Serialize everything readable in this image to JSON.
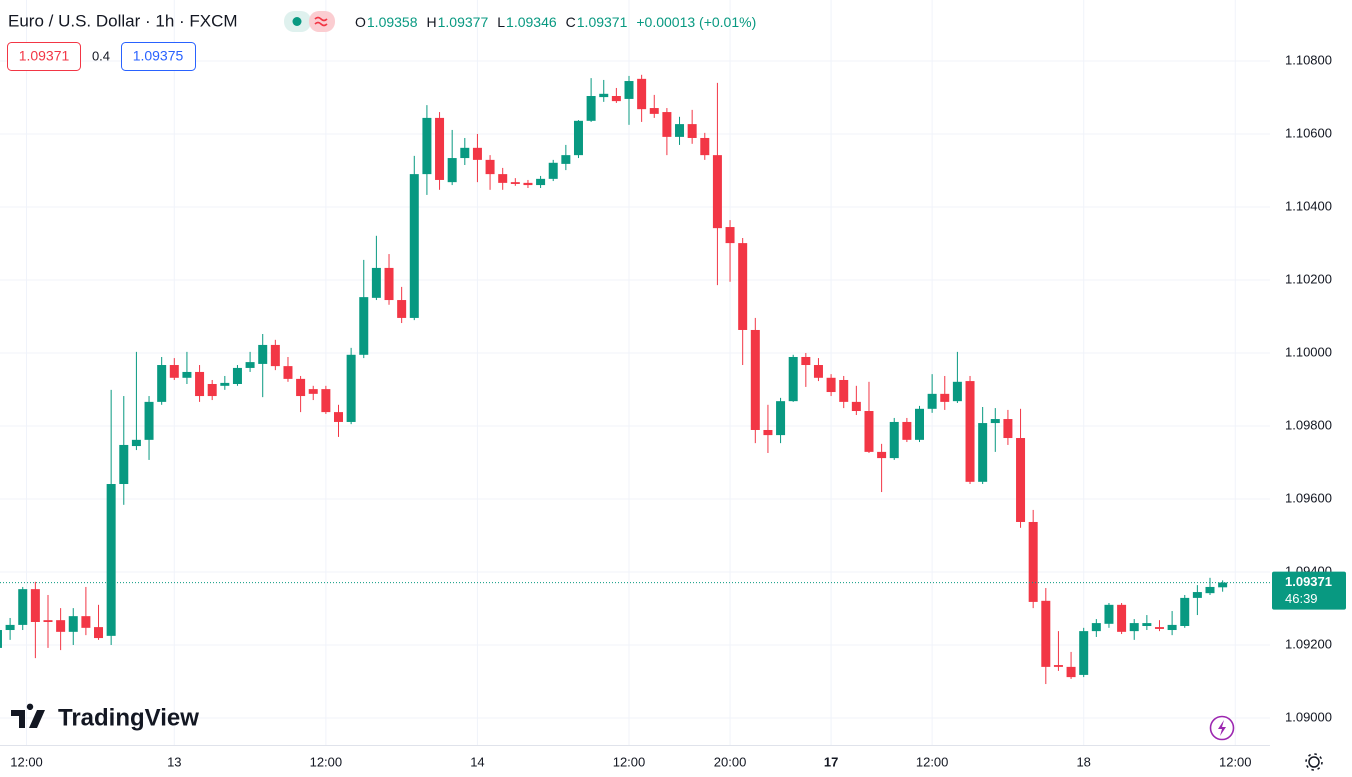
{
  "chart_data": {
    "type": "candlestick",
    "title": "Euro / U.S. Dollar · 1h · FXCM",
    "ohlc_labels": [
      "O",
      "H",
      "L",
      "C"
    ],
    "ohlc_values": [
      1.09358,
      1.09377,
      1.09346,
      1.09371
    ],
    "change": "+0.00013 (+0.01%)",
    "bid": 1.09371,
    "spread": 0.4,
    "ask": 1.09375,
    "last_price": 1.09371,
    "countdown": "46:39",
    "watermark": "TradingView",
    "up_color": "#089981",
    "down_color": "#f23645",
    "grid": true,
    "xlim": [
      0.2,
      100.75
    ],
    "xticks": [
      {
        "value": 2.3,
        "label": "12:00"
      },
      {
        "value": 14,
        "label": "13"
      },
      {
        "value": 26,
        "label": "12:00"
      },
      {
        "value": 38,
        "label": "14"
      },
      {
        "value": 50,
        "label": "12:00"
      },
      {
        "value": 58,
        "label": "20:00"
      },
      {
        "value": 66,
        "label": "17"
      },
      {
        "value": 74,
        "label": "12:00"
      },
      {
        "value": 86,
        "label": "18"
      },
      {
        "value": 98,
        "label": "12:00"
      }
    ],
    "ylim": [
      1.08926,
      1.10967
    ],
    "yticks": [
      {
        "value": 1.09,
        "label": "1.09000"
      },
      {
        "value": 1.092,
        "label": "1.09200"
      },
      {
        "value": 1.094,
        "label": "1.09400"
      },
      {
        "value": 1.096,
        "label": "1.09600"
      },
      {
        "value": 1.098,
        "label": "1.09800"
      },
      {
        "value": 1.1,
        "label": "1.10000"
      },
      {
        "value": 1.102,
        "label": "1.10200"
      },
      {
        "value": 1.104,
        "label": "1.10400"
      },
      {
        "value": 1.106,
        "label": "1.10600"
      },
      {
        "value": 1.108,
        "label": "1.10800"
      }
    ],
    "open": [
      1.09192,
      1.09241,
      1.09255,
      1.09353,
      1.09268,
      1.09268,
      1.09236,
      1.09279,
      1.09249,
      1.09225,
      1.09641,
      1.09745,
      1.09762,
      1.09866,
      1.09967,
      1.09932,
      1.09948,
      1.09915,
      1.0991,
      1.09915,
      1.09959,
      1.0997,
      1.10022,
      1.09964,
      1.09929,
      1.09901,
      1.09901,
      1.09838,
      1.09811,
      1.09995,
      1.10151,
      1.10233,
      1.10145,
      1.10096,
      1.1049,
      1.10644,
      1.10468,
      1.10534,
      1.10562,
      1.10529,
      1.1049,
      1.10468,
      1.10466,
      1.1046,
      1.10477,
      1.10518,
      1.10542,
      1.10636,
      1.10701,
      1.10704,
      1.10696,
      1.10751,
      1.10671,
      1.1066,
      1.10592,
      1.10627,
      1.10589,
      1.10542,
      1.10345,
      1.10301,
      1.10063,
      1.09789,
      1.09775,
      1.09868,
      1.09989,
      1.09967,
      1.09932,
      1.09926,
      1.09866,
      1.09841,
      1.09729,
      1.09712,
      1.09811,
      1.09762,
      1.09847,
      1.09888,
      1.09868,
      1.09923,
      1.09647,
      1.09808,
      1.09819,
      1.09767,
      1.09537,
      1.09321,
      1.09145,
      1.0914,
      1.09118,
      1.09238,
      1.09258,
      1.0931,
      1.09238,
      1.09252,
      1.09249,
      1.09241,
      1.09252,
      1.09329,
      1.09342,
      1.09358
    ],
    "high": [
      1.09255,
      1.09274,
      1.09359,
      1.09373,
      1.09337,
      1.09301,
      1.09301,
      1.09359,
      1.0931,
      1.09899,
      1.09882,
      1.10003,
      1.09882,
      1.09989,
      1.09986,
      1.10003,
      1.09967,
      1.09926,
      1.09937,
      1.09967,
      1.10003,
      1.10052,
      1.10036,
      1.09989,
      1.09937,
      1.0991,
      1.0991,
      1.09858,
      1.10014,
      1.10255,
      1.10321,
      1.10271,
      1.10181,
      1.1054,
      1.10679,
      1.1066,
      1.10611,
      1.10589,
      1.106,
      1.10542,
      1.10507,
      1.10479,
      1.10474,
      1.10485,
      1.10529,
      1.1057,
      1.10638,
      1.10753,
      1.10748,
      1.10726,
      1.10759,
      1.10762,
      1.10707,
      1.10671,
      1.10647,
      1.10666,
      1.10603,
      1.1074,
      1.10364,
      1.10315,
      1.10096,
      1.09858,
      1.09877,
      1.09995,
      1.1,
      1.09986,
      1.09942,
      1.09937,
      1.0991,
      1.09921,
      1.09751,
      1.09822,
      1.09822,
      1.09855,
      1.09942,
      1.09937,
      1.10003,
      1.09937,
      1.09852,
      1.09849,
      1.09844,
      1.09847,
      1.0957,
      1.09356,
      1.09238,
      1.09181,
      1.09247,
      1.09271,
      1.09315,
      1.09315,
      1.09271,
      1.09282,
      1.09268,
      1.09293,
      1.09337,
      1.09364,
      1.09384,
      1.09377
    ],
    "low": [
      1.09186,
      1.09214,
      1.09241,
      1.09164,
      1.09192,
      1.09186,
      1.092,
      1.09227,
      1.09214,
      1.092,
      1.09584,
      1.09734,
      1.09707,
      1.09858,
      1.09926,
      1.09915,
      1.09866,
      1.09871,
      1.09899,
      1.0991,
      1.09948,
      1.09879,
      1.09953,
      1.09921,
      1.09838,
      1.09871,
      1.09833,
      1.0977,
      1.09805,
      1.09986,
      1.10145,
      1.10132,
      1.10082,
      1.1009,
      1.10433,
      1.10447,
      1.1046,
      1.10515,
      1.10468,
      1.10447,
      1.10447,
      1.10458,
      1.10452,
      1.10452,
      1.10471,
      1.10501,
      1.10534,
      1.10633,
      1.10688,
      1.10685,
      1.10625,
      1.10633,
      1.10644,
      1.10542,
      1.1057,
      1.10573,
      1.10529,
      1.10186,
      1.10195,
      1.09967,
      1.09753,
      1.09726,
      1.09753,
      1.09866,
      1.09907,
      1.09923,
      1.09882,
      1.09849,
      1.0983,
      1.09726,
      1.09619,
      1.09707,
      1.09756,
      1.09756,
      1.09836,
      1.09844,
      1.09863,
      1.09641,
      1.09641,
      1.09729,
      1.09748,
      1.09521,
      1.09301,
      1.09093,
      1.09129,
      1.09107,
      1.09112,
      1.09222,
      1.09247,
      1.0923,
      1.09214,
      1.09241,
      1.09238,
      1.09227,
      1.09247,
      1.09282,
      1.09337,
      1.09346
    ],
    "close": [
      1.09241,
      1.09255,
      1.09353,
      1.09263,
      1.09263,
      1.09236,
      1.09279,
      1.09247,
      1.09219,
      1.09641,
      1.09748,
      1.09762,
      1.09866,
      1.09967,
      1.09932,
      1.09948,
      1.09882,
      1.09882,
      1.09918,
      1.09959,
      1.09975,
      1.10022,
      1.09964,
      1.09929,
      1.09882,
      1.09888,
      1.09838,
      1.09811,
      1.09995,
      1.10153,
      1.10233,
      1.10145,
      1.10096,
      1.1049,
      1.10644,
      1.10474,
      1.10534,
      1.10562,
      1.10529,
      1.1049,
      1.10466,
      1.10463,
      1.1046,
      1.10477,
      1.10521,
      1.10542,
      1.10636,
      1.10704,
      1.1071,
      1.1069,
      1.10745,
      1.10668,
      1.10655,
      1.10592,
      1.10627,
      1.10589,
      1.10542,
      1.10342,
      1.10301,
      1.10063,
      1.09789,
      1.09775,
      1.09868,
      1.09989,
      1.09967,
      1.09932,
      1.09893,
      1.09866,
      1.09841,
      1.09729,
      1.09712,
      1.09811,
      1.09762,
      1.09847,
      1.09888,
      1.09866,
      1.09921,
      1.09647,
      1.09808,
      1.09819,
      1.09767,
      1.09537,
      1.09318,
      1.0914,
      1.0914,
      1.09112,
      1.09238,
      1.0926,
      1.0931,
      1.09236,
      1.0926,
      1.0926,
      1.09244,
      1.09255,
      1.09329,
      1.09345,
      1.09359,
      1.09371
    ]
  }
}
